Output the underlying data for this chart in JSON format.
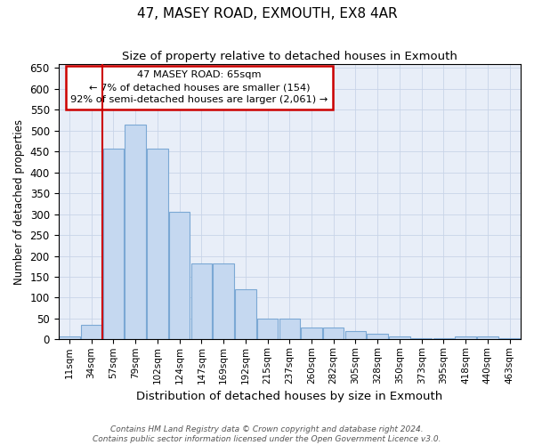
{
  "title": "47, MASEY ROAD, EXMOUTH, EX8 4AR",
  "subtitle": "Size of property relative to detached houses in Exmouth",
  "xlabel": "Distribution of detached houses by size in Exmouth",
  "ylabel": "Number of detached properties",
  "categories": [
    "11sqm",
    "34sqm",
    "57sqm",
    "79sqm",
    "102sqm",
    "124sqm",
    "147sqm",
    "169sqm",
    "192sqm",
    "215sqm",
    "237sqm",
    "260sqm",
    "282sqm",
    "305sqm",
    "328sqm",
    "350sqm",
    "373sqm",
    "395sqm",
    "418sqm",
    "440sqm",
    "463sqm"
  ],
  "values": [
    7,
    35,
    457,
    515,
    457,
    305,
    183,
    183,
    120,
    50,
    50,
    28,
    28,
    20,
    13,
    8,
    3,
    3,
    8,
    8,
    3
  ],
  "bar_color": "#c5d8f0",
  "bar_edge_color": "#7ba8d4",
  "vline_index": 2,
  "vline_color": "#cc0000",
  "annotation_line1": "47 MASEY ROAD: 65sqm",
  "annotation_line2": "← 7% of detached houses are smaller (154)",
  "annotation_line3": "92% of semi-detached houses are larger (2,061) →",
  "annotation_box_facecolor": "#ffffff",
  "annotation_box_edgecolor": "#cc0000",
  "ylim_max": 660,
  "yticks": [
    0,
    50,
    100,
    150,
    200,
    250,
    300,
    350,
    400,
    450,
    500,
    550,
    600,
    650
  ],
  "grid_color": "#c8d4e8",
  "plot_bg_color": "#e8eef8",
  "footer_line1": "Contains HM Land Registry data © Crown copyright and database right 2024.",
  "footer_line2": "Contains public sector information licensed under the Open Government Licence v3.0.",
  "figsize": [
    6.0,
    5.0
  ],
  "dpi": 100
}
